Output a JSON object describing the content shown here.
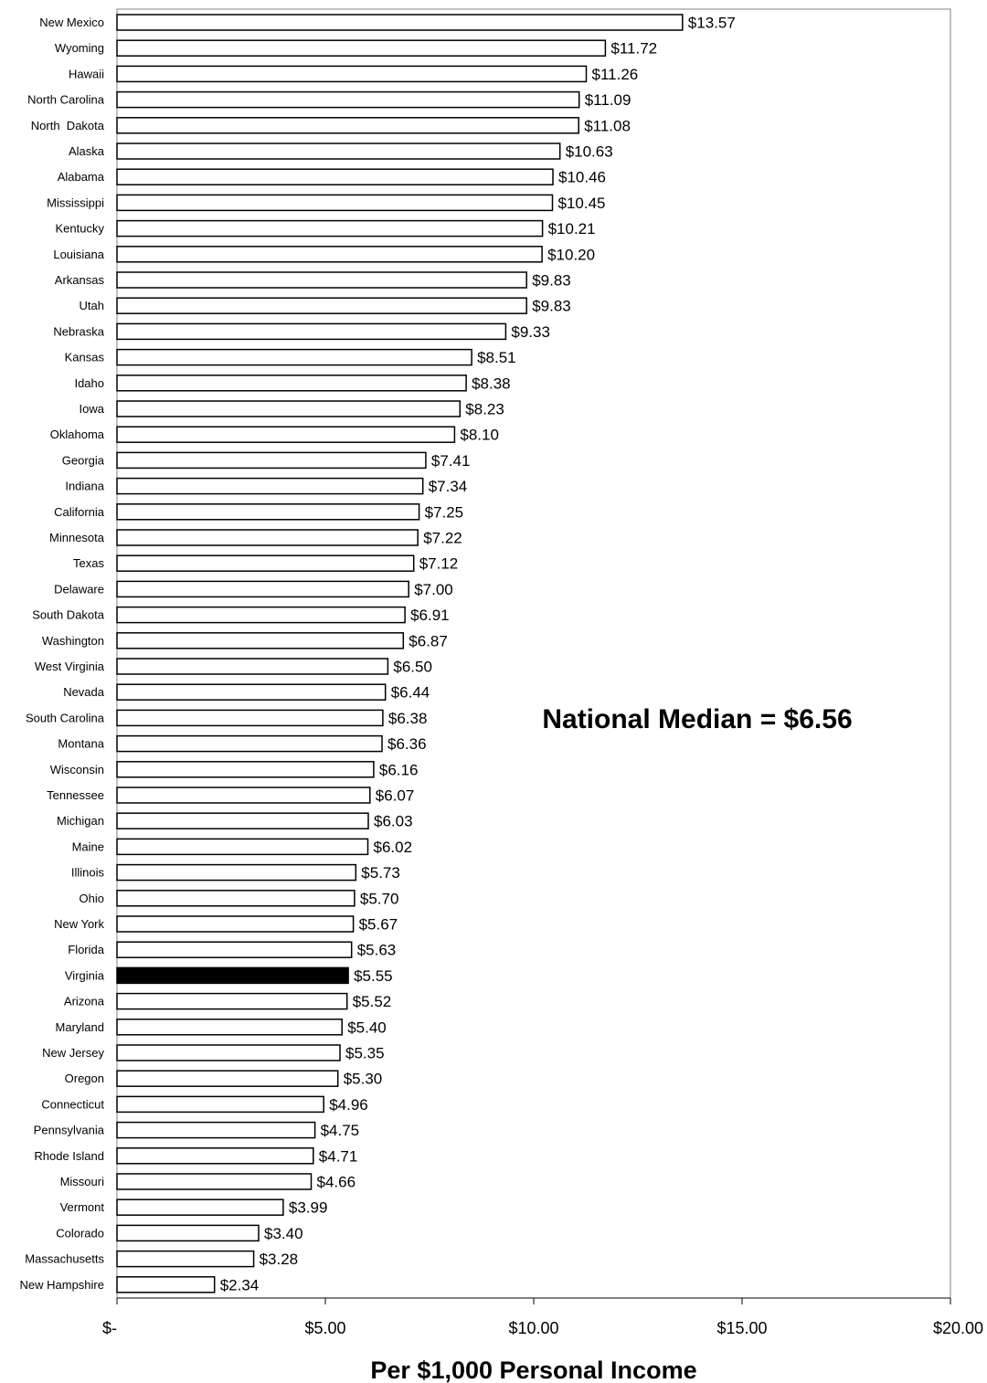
{
  "chart_data": {
    "type": "bar",
    "orientation": "horizontal",
    "categories": [
      "New Mexico",
      "Wyoming",
      "Hawaii",
      "North Carolina",
      "North  Dakota",
      "Alaska",
      "Alabama",
      "Mississippi",
      "Kentucky",
      "Louisiana",
      "Arkansas",
      "Utah",
      "Nebraska",
      "Kansas",
      "Idaho",
      "Iowa",
      "Oklahoma",
      "Georgia",
      "Indiana",
      "California",
      "Minnesota",
      "Texas",
      "Delaware",
      "South Dakota",
      "Washington",
      "West Virginia",
      "Nevada",
      "South Carolina",
      "Montana",
      "Wisconsin",
      "Tennessee",
      "Michigan",
      "Maine",
      "Illinois",
      "Ohio",
      "New York",
      "Florida",
      "Virginia",
      "Arizona",
      "Maryland",
      "New Jersey",
      "Oregon",
      "Connecticut",
      "Pennsylvania",
      "Rhode Island",
      "Missouri",
      "Vermont",
      "Colorado",
      "Massachusetts",
      "New Hampshire"
    ],
    "values": [
      13.57,
      11.72,
      11.26,
      11.09,
      11.08,
      10.63,
      10.46,
      10.45,
      10.21,
      10.2,
      9.83,
      9.83,
      9.33,
      8.51,
      8.38,
      8.23,
      8.1,
      7.41,
      7.34,
      7.25,
      7.22,
      7.12,
      7.0,
      6.91,
      6.87,
      6.5,
      6.44,
      6.38,
      6.36,
      6.16,
      6.07,
      6.03,
      6.02,
      5.73,
      5.7,
      5.67,
      5.63,
      5.55,
      5.52,
      5.4,
      5.35,
      5.3,
      4.96,
      4.75,
      4.71,
      4.66,
      3.99,
      3.4,
      3.28,
      2.34
    ],
    "value_labels": [
      "$13.57",
      "$11.72",
      "$11.26",
      "$11.09",
      "$11.08",
      "$10.63",
      "$10.46",
      "$10.45",
      "$10.21",
      "$10.20",
      "$9.83",
      "$9.83",
      "$9.33",
      "$8.51",
      "$8.38",
      "$8.23",
      "$8.10",
      "$7.41",
      "$7.34",
      "$7.25",
      "$7.22",
      "$7.12",
      "$7.00",
      "$6.91",
      "$6.87",
      "$6.50",
      "$6.44",
      "$6.38",
      "$6.36",
      "$6.16",
      "$6.07",
      "$6.03",
      "$6.02",
      "$5.73",
      "$5.70",
      "$5.67",
      "$5.63",
      "$5.55",
      "$5.52",
      "$5.40",
      "$5.35",
      "$5.30",
      "$4.96",
      "$4.75",
      "$4.71",
      "$4.66",
      "$3.99",
      "$3.40",
      "$3.28",
      "$2.34"
    ],
    "highlight": "Virginia",
    "xlim": [
      0,
      20
    ],
    "x_ticks": [
      0,
      5,
      10,
      15,
      20
    ],
    "x_tick_labels": [
      "$-",
      "$5.00",
      "$10.00",
      "$15.00",
      "$20.00"
    ],
    "xlabel": "Per $1,000 Personal Income",
    "ylabel": "",
    "title": "",
    "annotation": "National Median = $6.56",
    "grid": false,
    "legend": "none",
    "colors": {
      "bar_fill": "#ffffff",
      "bar_stroke": "#000000",
      "highlight_fill": "#000000"
    }
  }
}
